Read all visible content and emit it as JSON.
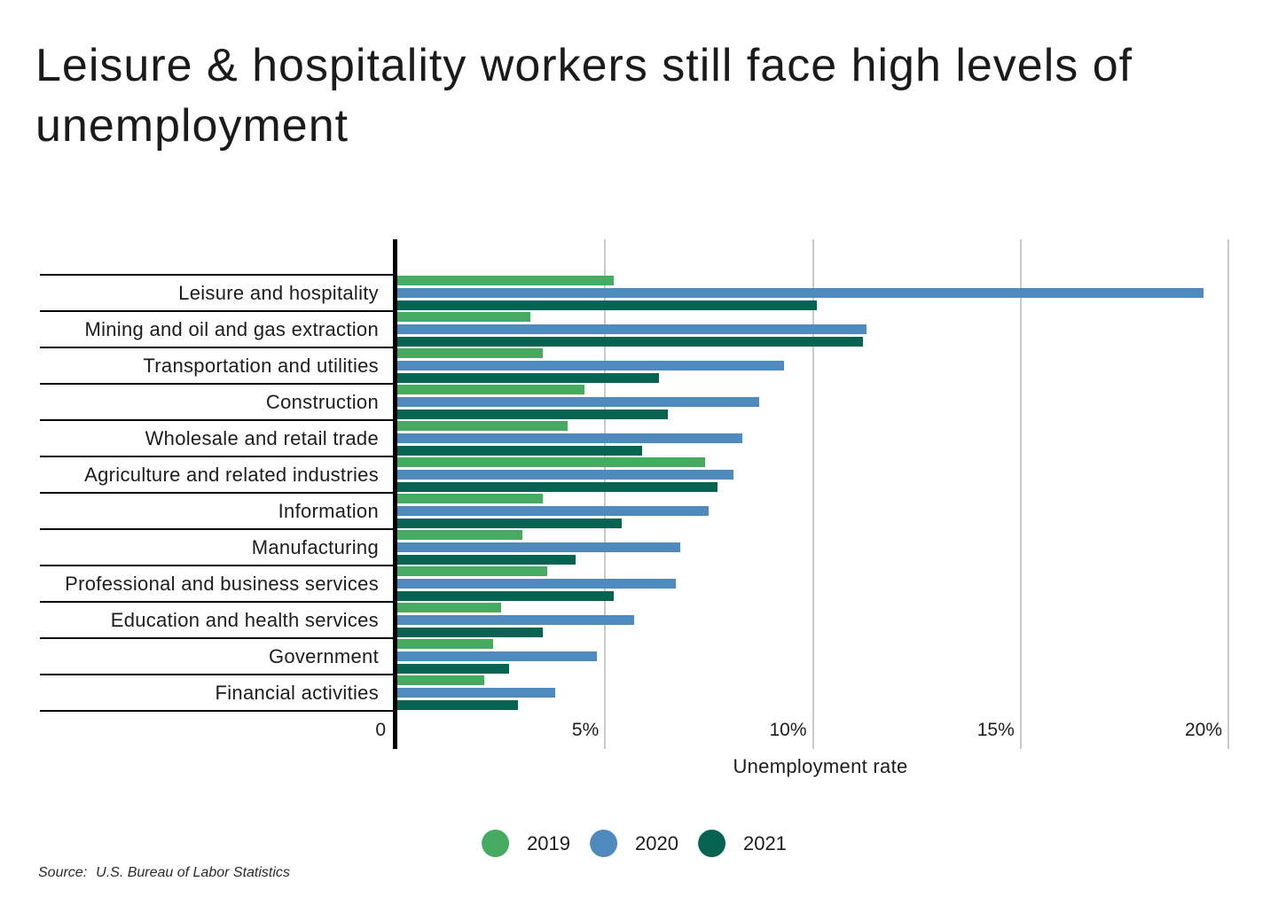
{
  "title": "Leisure & hospitality workers still face high levels of unemployment",
  "chart_data": {
    "type": "bar",
    "orientation": "horizontal",
    "title": "Leisure & hospitality workers still face high levels of unemployment",
    "xlabel": "Unemployment rate",
    "ylabel": "",
    "xlim": [
      0,
      21.3
    ],
    "grid": true,
    "legend_position": "bottom",
    "categories": [
      "Leisure and hospitality",
      "Mining and oil and gas extraction",
      "Transportation and utilities",
      "Construction",
      "Wholesale and retail trade",
      "Agriculture and related industries",
      "Information",
      "Manufacturing",
      "Professional and business services",
      "Education and health services",
      "Government",
      "Financial activities"
    ],
    "series": [
      {
        "name": "2019",
        "color": "#46ab61",
        "values": [
          5.2,
          3.2,
          3.5,
          4.5,
          4.1,
          7.4,
          3.5,
          3.0,
          3.6,
          2.5,
          2.3,
          2.1
        ]
      },
      {
        "name": "2020",
        "color": "#4e8abd",
        "values": [
          19.4,
          11.3,
          9.3,
          8.7,
          8.3,
          8.1,
          7.5,
          6.8,
          6.7,
          5.7,
          4.8,
          3.8
        ]
      },
      {
        "name": "2021",
        "color": "#066351",
        "values": [
          10.1,
          11.2,
          6.3,
          6.5,
          5.9,
          7.7,
          5.4,
          4.3,
          5.2,
          3.5,
          2.7,
          2.9
        ]
      }
    ],
    "x_ticks": [
      {
        "value": 0,
        "label": "0"
      },
      {
        "value": 5,
        "label": "5%"
      },
      {
        "value": 10,
        "label": "10%"
      },
      {
        "value": 15,
        "label": "15%"
      },
      {
        "value": 20,
        "label": "20%"
      }
    ]
  },
  "legend": {
    "items": [
      {
        "label": "2019",
        "color": "#46ab61"
      },
      {
        "label": "2020",
        "color": "#4e8abd"
      },
      {
        "label": "2021",
        "color": "#066351"
      }
    ]
  },
  "source": {
    "prefix": "Source:",
    "text": "U.S. Bureau of Labor Statistics"
  }
}
